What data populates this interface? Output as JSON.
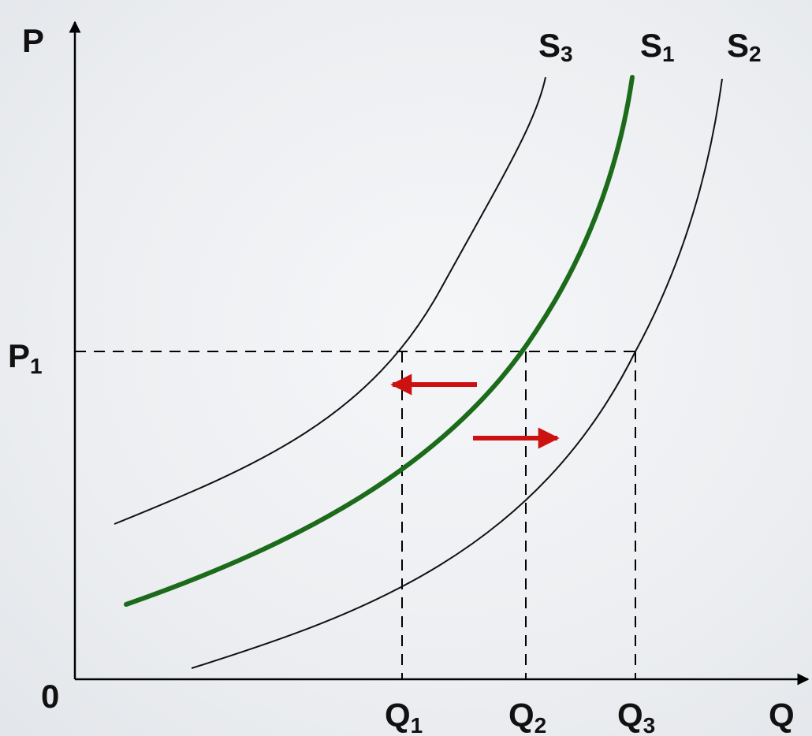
{
  "axes": {
    "y_label": "P",
    "x_label": "Q",
    "origin_label": "0"
  },
  "price_level": {
    "label_main": "P",
    "label_sub": "1"
  },
  "quantities": [
    {
      "label_main": "Q",
      "label_sub": "1"
    },
    {
      "label_main": "Q",
      "label_sub": "2"
    },
    {
      "label_main": "Q",
      "label_sub": "3"
    }
  ],
  "curves": [
    {
      "label_main": "S",
      "label_sub": "3",
      "color": "#111111",
      "emphasis": "thin"
    },
    {
      "label_main": "S",
      "label_sub": "1",
      "color": "#1b6b1b",
      "emphasis": "thick"
    },
    {
      "label_main": "S",
      "label_sub": "2",
      "color": "#111111",
      "emphasis": "thin"
    }
  ],
  "shift_arrows": [
    {
      "direction": "left",
      "color": "#cc1111"
    },
    {
      "direction": "right",
      "color": "#cc1111"
    }
  ]
}
